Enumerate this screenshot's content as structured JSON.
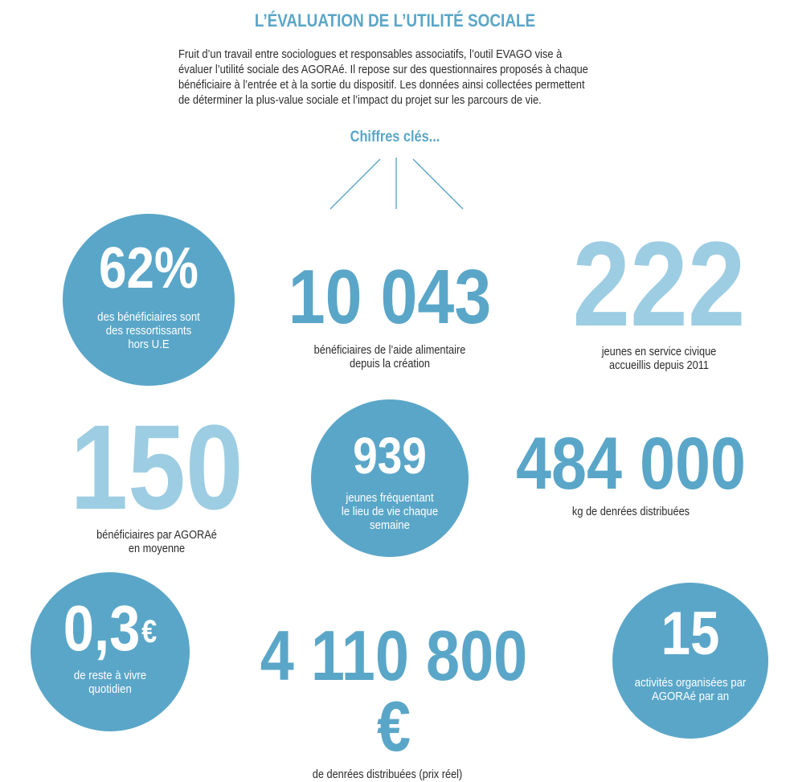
{
  "header": {
    "title": "L’ÉVALUATION DE L’UTILITÉ SOCIALE",
    "intro_lines": [
      "Fruit d’un travail entre sociologues et responsables associatifs, l’outil EVAGO vise à",
      "évaluer l’utilité sociale des AGORAé. Il repose sur des questionnaires proposés à chaque",
      "bénéficiaire à l’entrée et à la sortie du dispositif. Les données ainsi collectées permettent",
      "de déterminer la plus-value sociale et l’impact du projet sur les parcours de vie."
    ],
    "subtitle": "Chiffres clés..."
  },
  "colors": {
    "accent": "#5aa6c8",
    "light_accent": "#9dcde2",
    "text": "#2b2b2b"
  },
  "stats": {
    "s1": {
      "value": "62%",
      "lines": [
        "des bénéficiaires sont",
        "des ressortissants",
        "hors U.E"
      ]
    },
    "s2": {
      "value": "10 043",
      "lines": [
        "bénéficiaires de l’aide alimentaire",
        "depuis la création"
      ]
    },
    "s3": {
      "value": "222",
      "lines": [
        "jeunes en service civique",
        "accueillis depuis 2011"
      ]
    },
    "s4": {
      "value": "150",
      "lines": [
        "bénéficiaires par AGORAé",
        "en moyenne"
      ]
    },
    "s5": {
      "value": "939",
      "lines": [
        "jeunes fréquentant",
        "le lieu de vie chaque",
        "semaine"
      ]
    },
    "s6": {
      "value": "484 000",
      "lines": [
        "kg de denrées distribuées"
      ]
    },
    "s7": {
      "value": "0,3",
      "currency": "€",
      "lines": [
        "de reste à vivre",
        "quotidien"
      ]
    },
    "s8": {
      "value": "4 110 800 €",
      "lines": [
        "de denrées distribuées (prix réel)"
      ]
    },
    "s9": {
      "value": "15",
      "lines": [
        "activités organisées par",
        "AGORAé par an"
      ]
    }
  }
}
